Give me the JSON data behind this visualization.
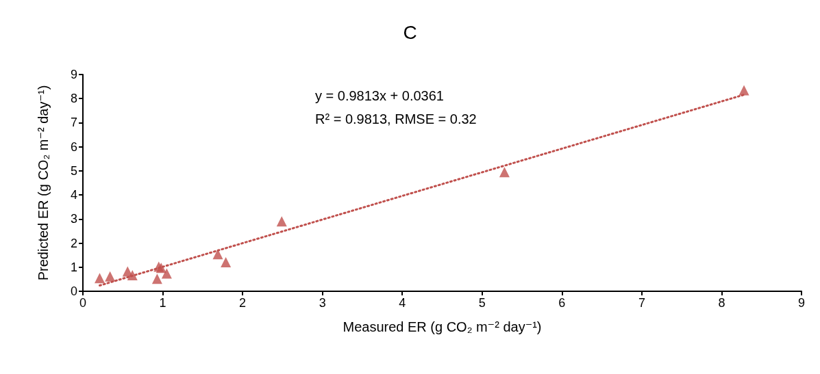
{
  "chart_data": {
    "type": "scatter",
    "title": "C",
    "xlabel": "Measured ER (g CO₂ m⁻² day⁻¹)",
    "ylabel": "Predicted ER (g CO₂ m⁻² day⁻¹)",
    "annotations": [
      "y = 0.9813x + 0.0361",
      "R² = 0.9813, RMSE = 0.32"
    ],
    "x": [
      0.21,
      0.34,
      0.56,
      0.62,
      0.95,
      0.98,
      0.93,
      1.05,
      1.69,
      1.79,
      2.49,
      5.28,
      8.28
    ],
    "series": [
      {
        "color": "#c0504d",
        "marker": "triangle",
        "values": [
          0.55,
          0.62,
          0.82,
          0.67,
          1.02,
          0.97,
          0.52,
          0.74,
          1.54,
          1.21,
          2.9,
          4.95,
          8.35
        ]
      },
      {
        "type": "line",
        "color": "#c0504d",
        "line_style": "dotted",
        "marker": "none",
        "x": [
          0.21,
          8.28
        ],
        "values": [
          0.24,
          8.16
        ]
      }
    ],
    "xlim": [
      0,
      9
    ],
    "xticks": [
      0,
      1,
      2,
      3,
      4,
      5,
      6,
      7,
      8,
      9
    ],
    "ylim": [
      0,
      9
    ],
    "yticks": [
      0,
      1,
      2,
      3,
      4,
      5,
      6,
      7,
      8,
      9
    ],
    "grid": false
  }
}
